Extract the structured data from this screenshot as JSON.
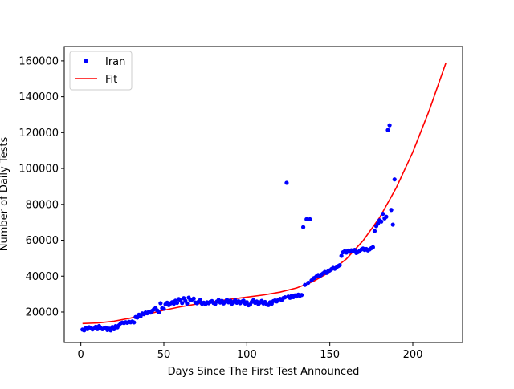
{
  "chart_data": {
    "type": "scatter",
    "title": "",
    "xlabel": "Days Since The First Test Announced",
    "ylabel": "Number of Daily Tests",
    "xlim": [
      -10,
      230
    ],
    "ylim": [
      3000,
      168000
    ],
    "xticks": [
      0,
      50,
      100,
      150,
      200
    ],
    "yticks": [
      20000,
      40000,
      60000,
      80000,
      100000,
      120000,
      140000,
      160000
    ],
    "xtick_labels": [
      "0",
      "50",
      "100",
      "150",
      "200"
    ],
    "ytick_labels": [
      "20000",
      "40000",
      "60000",
      "80000",
      "100000",
      "120000",
      "140000",
      "160000"
    ],
    "grid": false,
    "legend_position": "upper-left",
    "series": [
      {
        "name": "Iran",
        "kind": "points",
        "color": "#0000ff",
        "points": [
          [
            1,
            10200
          ],
          [
            2,
            9800
          ],
          [
            3,
            11000
          ],
          [
            4,
            10500
          ],
          [
            5,
            11500
          ],
          [
            6,
            11200
          ],
          [
            7,
            10300
          ],
          [
            8,
            10800
          ],
          [
            9,
            11800
          ],
          [
            10,
            10500
          ],
          [
            11,
            12200
          ],
          [
            12,
            11000
          ],
          [
            13,
            10400
          ],
          [
            14,
            10900
          ],
          [
            15,
            11300
          ],
          [
            16,
            10000
          ],
          [
            17,
            10700
          ],
          [
            18,
            9800
          ],
          [
            19,
            11600
          ],
          [
            20,
            10400
          ],
          [
            21,
            12200
          ],
          [
            22,
            11400
          ],
          [
            23,
            12600
          ],
          [
            24,
            13800
          ],
          [
            25,
            14100
          ],
          [
            26,
            13900
          ],
          [
            27,
            14300
          ],
          [
            28,
            14000
          ],
          [
            29,
            14500
          ],
          [
            30,
            14300
          ],
          [
            31,
            14700
          ],
          [
            32,
            14200
          ],
          [
            33,
            17200
          ],
          [
            34,
            16900
          ],
          [
            35,
            18500
          ],
          [
            36,
            17600
          ],
          [
            37,
            19200
          ],
          [
            38,
            18800
          ],
          [
            39,
            19700
          ],
          [
            40,
            19300
          ],
          [
            41,
            20200
          ],
          [
            42,
            19700
          ],
          [
            43,
            20700
          ],
          [
            44,
            21500
          ],
          [
            45,
            22200
          ],
          [
            46,
            20900
          ],
          [
            47,
            19800
          ],
          [
            48,
            24900
          ],
          [
            49,
            22100
          ],
          [
            50,
            21800
          ],
          [
            51,
            24300
          ],
          [
            52,
            25200
          ],
          [
            53,
            23900
          ],
          [
            54,
            24800
          ],
          [
            55,
            25500
          ],
          [
            56,
            24600
          ],
          [
            57,
            26300
          ],
          [
            58,
            25100
          ],
          [
            59,
            27200
          ],
          [
            60,
            26500
          ],
          [
            61,
            25000
          ],
          [
            62,
            27700
          ],
          [
            63,
            26200
          ],
          [
            64,
            24700
          ],
          [
            65,
            28000
          ],
          [
            66,
            26600
          ],
          [
            67,
            26900
          ],
          [
            68,
            27500
          ],
          [
            69,
            25300
          ],
          [
            70,
            24900
          ],
          [
            71,
            25800
          ],
          [
            72,
            26800
          ],
          [
            73,
            24600
          ],
          [
            74,
            25200
          ],
          [
            75,
            24300
          ],
          [
            76,
            25400
          ],
          [
            77,
            24900
          ],
          [
            78,
            25700
          ],
          [
            79,
            26100
          ],
          [
            80,
            25000
          ],
          [
            81,
            24500
          ],
          [
            82,
            25900
          ],
          [
            83,
            26700
          ],
          [
            84,
            25300
          ],
          [
            85,
            26200
          ],
          [
            86,
            24800
          ],
          [
            87,
            25600
          ],
          [
            88,
            26800
          ],
          [
            89,
            25400
          ],
          [
            90,
            26300
          ],
          [
            91,
            24600
          ],
          [
            92,
            25700
          ],
          [
            93,
            26600
          ],
          [
            94,
            25200
          ],
          [
            95,
            26000
          ],
          [
            96,
            24900
          ],
          [
            97,
            25800
          ],
          [
            98,
            26400
          ],
          [
            99,
            24700
          ],
          [
            100,
            25500
          ],
          [
            101,
            23800
          ],
          [
            102,
            24200
          ],
          [
            103,
            25700
          ],
          [
            104,
            26600
          ],
          [
            105,
            25100
          ],
          [
            106,
            25900
          ],
          [
            107,
            24400
          ],
          [
            108,
            25300
          ],
          [
            109,
            26200
          ],
          [
            110,
            24800
          ],
          [
            111,
            25600
          ],
          [
            112,
            24200
          ],
          [
            113,
            23900
          ],
          [
            114,
            25400
          ],
          [
            115,
            24600
          ],
          [
            116,
            26100
          ],
          [
            117,
            26500
          ],
          [
            118,
            25900
          ],
          [
            119,
            26800
          ],
          [
            120,
            27300
          ],
          [
            121,
            26700
          ],
          [
            122,
            27800
          ],
          [
            123,
            28200
          ],
          [
            124,
            92000
          ],
          [
            125,
            28600
          ],
          [
            126,
            27900
          ],
          [
            127,
            29000
          ],
          [
            128,
            28300
          ],
          [
            129,
            29300
          ],
          [
            130,
            28700
          ],
          [
            131,
            29700
          ],
          [
            132,
            29100
          ],
          [
            133,
            29500
          ],
          [
            134,
            67300
          ],
          [
            135,
            35100
          ],
          [
            136,
            71700
          ],
          [
            137,
            36300
          ],
          [
            138,
            71700
          ],
          [
            139,
            37600
          ],
          [
            140,
            38700
          ],
          [
            141,
            39100
          ],
          [
            142,
            39900
          ],
          [
            143,
            40600
          ],
          [
            144,
            40100
          ],
          [
            145,
            40900
          ],
          [
            146,
            41600
          ],
          [
            147,
            42300
          ],
          [
            148,
            41800
          ],
          [
            149,
            42700
          ],
          [
            150,
            43200
          ],
          [
            151,
            43900
          ],
          [
            152,
            44600
          ],
          [
            153,
            44100
          ],
          [
            154,
            44800
          ],
          [
            155,
            45600
          ],
          [
            156,
            46100
          ],
          [
            157,
            51300
          ],
          [
            158,
            53300
          ],
          [
            159,
            53900
          ],
          [
            160,
            53100
          ],
          [
            161,
            54200
          ],
          [
            162,
            53600
          ],
          [
            163,
            54400
          ],
          [
            164,
            53800
          ],
          [
            165,
            54600
          ],
          [
            166,
            52900
          ],
          [
            167,
            53400
          ],
          [
            168,
            54100
          ],
          [
            169,
            54800
          ],
          [
            170,
            55400
          ],
          [
            171,
            54600
          ],
          [
            172,
            55100
          ],
          [
            173,
            54300
          ],
          [
            174,
            54900
          ],
          [
            175,
            55600
          ],
          [
            176,
            56100
          ],
          [
            177,
            65100
          ],
          [
            178,
            67900
          ],
          [
            179,
            69300
          ],
          [
            180,
            71100
          ],
          [
            181,
            70400
          ],
          [
            182,
            74700
          ],
          [
            183,
            72200
          ],
          [
            184,
            73100
          ],
          [
            185,
            121400
          ],
          [
            186,
            124100
          ],
          [
            187,
            76900
          ],
          [
            188,
            68700
          ],
          [
            189,
            93900
          ]
        ]
      },
      {
        "name": "Fit",
        "kind": "line",
        "color": "#ff0000",
        "points": [
          [
            1,
            13600
          ],
          [
            10,
            13900
          ],
          [
            20,
            14900
          ],
          [
            30,
            16600
          ],
          [
            40,
            18800
          ],
          [
            50,
            21000
          ],
          [
            60,
            22900
          ],
          [
            70,
            24500
          ],
          [
            80,
            25800
          ],
          [
            90,
            27100
          ],
          [
            100,
            28300
          ],
          [
            110,
            29500
          ],
          [
            120,
            31100
          ],
          [
            130,
            33400
          ],
          [
            140,
            37000
          ],
          [
            150,
            42300
          ],
          [
            160,
            49600
          ],
          [
            170,
            59700
          ],
          [
            180,
            72600
          ],
          [
            190,
            89200
          ],
          [
            200,
            109100
          ],
          [
            210,
            132600
          ],
          [
            220,
            159000
          ]
        ]
      }
    ]
  }
}
